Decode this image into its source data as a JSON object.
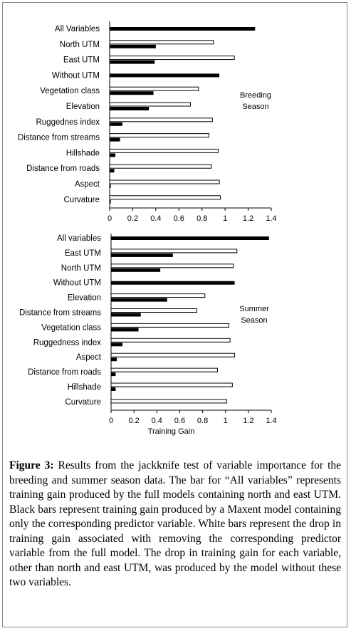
{
  "chart_data": [
    {
      "type": "bar",
      "orientation": "horizontal",
      "categories": [
        "All Variables",
        "North UTM",
        "East UTM",
        "Without UTM",
        "Vegetation class",
        "Elevation",
        "Ruggednes index",
        "Distance from streams",
        "Hillshade",
        "Distance from roads",
        "Aspect",
        "Curvature"
      ],
      "series": [
        {
          "key": "white",
          "values": [
            null,
            0.9,
            1.08,
            null,
            0.77,
            0.7,
            0.89,
            0.86,
            0.94,
            0.88,
            0.95,
            0.96
          ]
        },
        {
          "key": "black",
          "values": [
            1.26,
            0.4,
            0.39,
            0.95,
            0.38,
            0.34,
            0.11,
            0.09,
            0.05,
            0.04,
            0.01,
            0.01
          ]
        }
      ],
      "xlim": [
        0,
        1.4
      ],
      "xticks": [
        "0",
        "0.2",
        "0.4",
        "0.6",
        "0.8",
        "1",
        "1.2",
        "1.4"
      ],
      "annotation": [
        "Breeding",
        "Season"
      ],
      "xlabel": ""
    },
    {
      "type": "bar",
      "orientation": "horizontal",
      "categories": [
        "All variables",
        "East UTM",
        "North UTM",
        "Without UTM",
        "Elevation",
        "Distance from streams",
        "Vegetation class",
        "Ruggedness index",
        "Aspect",
        "Distance from roads",
        "Hillshade",
        "Curvature"
      ],
      "series": [
        {
          "key": "white",
          "values": [
            null,
            1.1,
            1.07,
            null,
            0.82,
            0.75,
            1.03,
            1.04,
            1.08,
            0.93,
            1.06,
            1.01
          ]
        },
        {
          "key": "black",
          "values": [
            1.38,
            0.54,
            0.43,
            1.08,
            0.49,
            0.26,
            0.24,
            0.1,
            0.05,
            0.04,
            0.04,
            null
          ]
        }
      ],
      "xlim": [
        0,
        1.4
      ],
      "xticks": [
        "0",
        "0.2",
        "0.4",
        "0.6",
        "0.8",
        "1",
        "1.2",
        "1.4"
      ],
      "annotation": [
        "Summer",
        "Season"
      ],
      "xlabel": "Training Gain"
    }
  ],
  "caption": {
    "label": "Figure 3:",
    "text": " Results from the jackknife test of variable importance for the breeding and summer season data. The bar for “All variables” represents training gain produced by the full models containing north and east UTM. Black bars represent training gain produced by a Maxent model containing only the corresponding predictor variable. White bars represent the drop in training gain associated with removing the corresponding predictor variable from the full model. The drop in training gain for each variable, other than north and east UTM, was produced by the model without these two variables."
  }
}
